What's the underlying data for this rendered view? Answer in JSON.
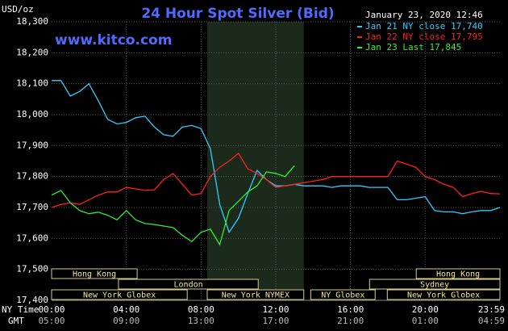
{
  "chart_data": {
    "type": "line",
    "title": "24 Hour Spot Silver (Bid)",
    "site": "www.kitco.com",
    "y_label": "USD/oz",
    "timestamp": "January 23, 2020 12:46",
    "x_label": "NY Time",
    "x2_label": "GMT",
    "xlim": [
      0,
      24
    ],
    "ylim": [
      17.4,
      18.3
    ],
    "yticks": [
      {
        "value": 17.4,
        "label": "17,400"
      },
      {
        "value": 17.5,
        "label": "17,500"
      },
      {
        "value": 17.6,
        "label": "17,600"
      },
      {
        "value": 17.7,
        "label": "17,700"
      },
      {
        "value": 17.8,
        "label": "17,800"
      },
      {
        "value": 17.9,
        "label": "17,900"
      },
      {
        "value": 18.0,
        "label": "18,000"
      },
      {
        "value": 18.1,
        "label": "18,100"
      },
      {
        "value": 18.2,
        "label": "18,200"
      },
      {
        "value": 18.3,
        "label": "18,300"
      }
    ],
    "xticks": [
      {
        "value": 0,
        "label": "00:00"
      },
      {
        "value": 4,
        "label": "04:00"
      },
      {
        "value": 8,
        "label": "08:00"
      },
      {
        "value": 12,
        "label": "12:00"
      },
      {
        "value": 16,
        "label": "16:00"
      },
      {
        "value": 20,
        "label": "20:00"
      },
      {
        "value": 23.983,
        "label": "23:59"
      }
    ],
    "x2tick_labels": [
      "05:00",
      "09:00",
      "13:00",
      "17:00",
      "21:00",
      "01:00",
      "04:59"
    ],
    "grid": true,
    "highlight": [
      8.33,
      13.5
    ],
    "sessions": [
      [
        {
          "label": "Hong Kong",
          "start": 0,
          "end": 4.58
        },
        {
          "label": "Hong Kong",
          "start": 19.52,
          "end": 24
        }
      ],
      [
        {
          "label": "London",
          "start": 3.58,
          "end": 11.06
        },
        {
          "label": "Sydney",
          "start": 17.02,
          "end": 24
        }
      ],
      [
        {
          "label": "New York Globex",
          "start": 0,
          "end": 7.26
        },
        {
          "label": "New York NYMEX",
          "start": 8.33,
          "end": 13.5
        },
        {
          "label": "NY Globex",
          "start": 13.87,
          "end": 17.32
        },
        {
          "label": "New York Globex",
          "start": 17.97,
          "end": 24
        }
      ]
    ],
    "x": [
      0,
      0.5,
      1,
      1.5,
      2,
      2.5,
      3,
      3.5,
      4,
      4.5,
      5,
      5.5,
      6,
      6.5,
      7,
      7.5,
      8,
      8.5,
      9,
      9.5,
      10,
      10.5,
      11,
      11.5,
      12,
      12.5,
      13,
      13.5,
      14,
      14.5,
      15,
      15.5,
      16,
      16.5,
      17,
      17.5,
      18,
      18.5,
      19,
      19.5,
      20,
      20.5,
      21,
      21.5,
      22,
      22.5,
      23,
      23.5,
      24
    ],
    "series": [
      {
        "name": "Jan 21 NY close 17,740",
        "color": "#33ccff",
        "values": [
          18.11,
          18.11,
          18.06,
          18.075,
          18.1,
          18.045,
          17.985,
          17.97,
          17.975,
          17.99,
          17.995,
          17.96,
          17.935,
          17.93,
          17.96,
          17.965,
          17.955,
          17.89,
          17.71,
          17.62,
          17.665,
          17.745,
          17.82,
          17.79,
          17.77,
          17.77,
          17.775,
          17.77,
          17.77,
          17.77,
          17.765,
          17.77,
          17.77,
          17.77,
          17.765,
          17.765,
          17.765,
          17.725,
          17.725,
          17.73,
          17.735,
          17.69,
          17.686,
          17.686,
          17.68,
          17.686,
          17.69,
          17.69,
          17.7
        ]
      },
      {
        "name": "Jan 22 NY close 17,795",
        "color": "#ff2020",
        "values": [
          17.7,
          17.71,
          17.715,
          17.71,
          17.725,
          17.74,
          17.75,
          17.75,
          17.765,
          17.76,
          17.755,
          17.757,
          17.79,
          17.81,
          17.775,
          17.74,
          17.745,
          17.8,
          17.83,
          17.85,
          17.875,
          17.825,
          17.81,
          17.79,
          17.765,
          17.77,
          17.775,
          17.78,
          17.785,
          17.79,
          17.8,
          17.8,
          17.8,
          17.8,
          17.8,
          17.8,
          17.8,
          17.85,
          17.84,
          17.83,
          17.8,
          17.79,
          17.775,
          17.765,
          17.735,
          17.745,
          17.752,
          17.745,
          17.744
        ]
      },
      {
        "name": "Jan 23 Last 17,845",
        "color": "#33ee33",
        "values": [
          17.74,
          17.755,
          17.715,
          17.69,
          17.68,
          17.685,
          17.675,
          17.66,
          17.69,
          17.66,
          17.648,
          17.645,
          17.64,
          17.635,
          17.61,
          17.59,
          17.62,
          17.63,
          17.58,
          17.69,
          17.72,
          17.75,
          17.77,
          17.815,
          17.81,
          17.8,
          17.835,
          null,
          null,
          null,
          null,
          null,
          null,
          null,
          null,
          null,
          null,
          null,
          null,
          null,
          null,
          null,
          null,
          null,
          null,
          null,
          null,
          null,
          null
        ]
      }
    ]
  }
}
